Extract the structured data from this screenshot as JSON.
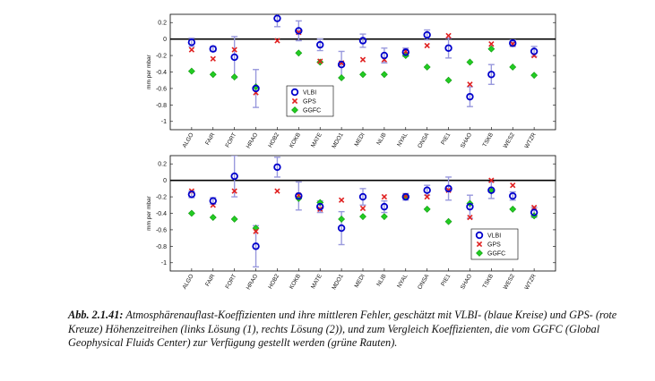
{
  "caption": {
    "label": "Abb. 2.1.41:",
    "text": "Atmosphärenauflast-Koeffizienten und ihre mittleren Fehler, geschätzt mit VLBI- (blaue Kreise) und GPS- (rote Kreuze) Höhenzeitreihen (links Lösung (1), rechts Lösung (2)), und zum Vergleich Koeffizienten, die vom GGFC (Global Geophysical Fluids Center) zur Verfügung gestellt werden (grüne Rauten)."
  },
  "colors": {
    "vlbi": "#0000cc",
    "gps": "#e02020",
    "ggfc": "#22cc22",
    "errorbar": "#9999dd",
    "zero_line": "#000000"
  },
  "chart_data": [
    {
      "type": "scatter",
      "ylabel": "mm per mbar",
      "ylim": [
        -1.1,
        0.3
      ],
      "yticks": [
        0.2,
        0,
        -0.2,
        -0.4,
        -0.6,
        -0.8,
        -1
      ],
      "grid": false,
      "legend_placement": "center",
      "categories": [
        "ALGO",
        "FAIR",
        "FORT",
        "HRAO",
        "HOB2",
        "KOKB",
        "MATE",
        "MDO1",
        "MEDI",
        "NLIB",
        "NYAL",
        "ONSA",
        "PIE1",
        "SHAO",
        "TSKB",
        "WES2",
        "WTZR"
      ],
      "series": [
        {
          "name": "VLBI",
          "marker": "circle",
          "values": [
            -0.04,
            -0.12,
            -0.22,
            -0.6,
            0.25,
            0.1,
            -0.07,
            -0.31,
            -0.02,
            -0.2,
            -0.16,
            0.05,
            -0.11,
            -0.7,
            -0.43,
            -0.05,
            -0.15
          ],
          "errors": [
            0.05,
            0.03,
            0.25,
            0.23,
            0.1,
            0.12,
            0.07,
            0.16,
            0.08,
            0.09,
            0.05,
            0.06,
            0.12,
            0.12,
            0.12,
            0.04,
            0.06
          ]
        },
        {
          "name": "GPS",
          "marker": "cross",
          "values": [
            -0.13,
            -0.24,
            -0.13,
            -0.65,
            -0.02,
            0.08,
            -0.27,
            -0.29,
            -0.25,
            -0.25,
            -0.15,
            -0.08,
            0.04,
            -0.55,
            -0.06,
            -0.06,
            -0.2
          ]
        },
        {
          "name": "GGFC",
          "marker": "diamond",
          "values": [
            -0.39,
            -0.43,
            -0.46,
            -0.58,
            null,
            -0.17,
            -0.28,
            -0.47,
            -0.43,
            -0.43,
            -0.2,
            -0.34,
            -0.5,
            -0.28,
            -0.12,
            -0.34,
            -0.44
          ]
        }
      ]
    },
    {
      "type": "scatter",
      "ylabel": "mm per mbar",
      "ylim": [
        -1.1,
        0.3
      ],
      "yticks": [
        0.2,
        0,
        -0.2,
        -0.4,
        -0.6,
        -0.8,
        -1
      ],
      "grid": false,
      "legend_placement": "right",
      "categories": [
        "ALGO",
        "FAIR",
        "FORT",
        "HRAO",
        "HOB2",
        "KOKB",
        "MATE",
        "MDO1",
        "MEDI",
        "NLIB",
        "NYAL",
        "ONSA",
        "PIE1",
        "SHAO",
        "TSKB",
        "WES2",
        "WTZR"
      ],
      "series": [
        {
          "name": "VLBI",
          "marker": "circle",
          "values": [
            -0.17,
            -0.25,
            0.05,
            -0.8,
            0.16,
            -0.19,
            -0.32,
            -0.58,
            -0.2,
            -0.32,
            -0.2,
            -0.12,
            -0.1,
            -0.32,
            -0.12,
            -0.19,
            -0.39
          ],
          "errors": [
            0.04,
            0.04,
            0.25,
            0.25,
            0.12,
            0.17,
            0.07,
            0.2,
            0.1,
            0.07,
            0.04,
            0.06,
            0.14,
            0.14,
            0.1,
            0.05,
            0.06
          ]
        },
        {
          "name": "GPS",
          "marker": "cross",
          "values": [
            -0.13,
            -0.3,
            -0.13,
            -0.62,
            -0.13,
            -0.18,
            -0.35,
            -0.24,
            -0.34,
            -0.2,
            -0.19,
            -0.2,
            -0.12,
            -0.45,
            0,
            -0.06,
            -0.33
          ]
        },
        {
          "name": "GGFC",
          "marker": "diamond",
          "values": [
            -0.4,
            -0.45,
            -0.47,
            -0.58,
            null,
            -0.22,
            -0.27,
            -0.47,
            -0.44,
            -0.44,
            -0.2,
            -0.35,
            -0.5,
            -0.28,
            -0.13,
            -0.35,
            -0.43
          ]
        }
      ]
    }
  ]
}
